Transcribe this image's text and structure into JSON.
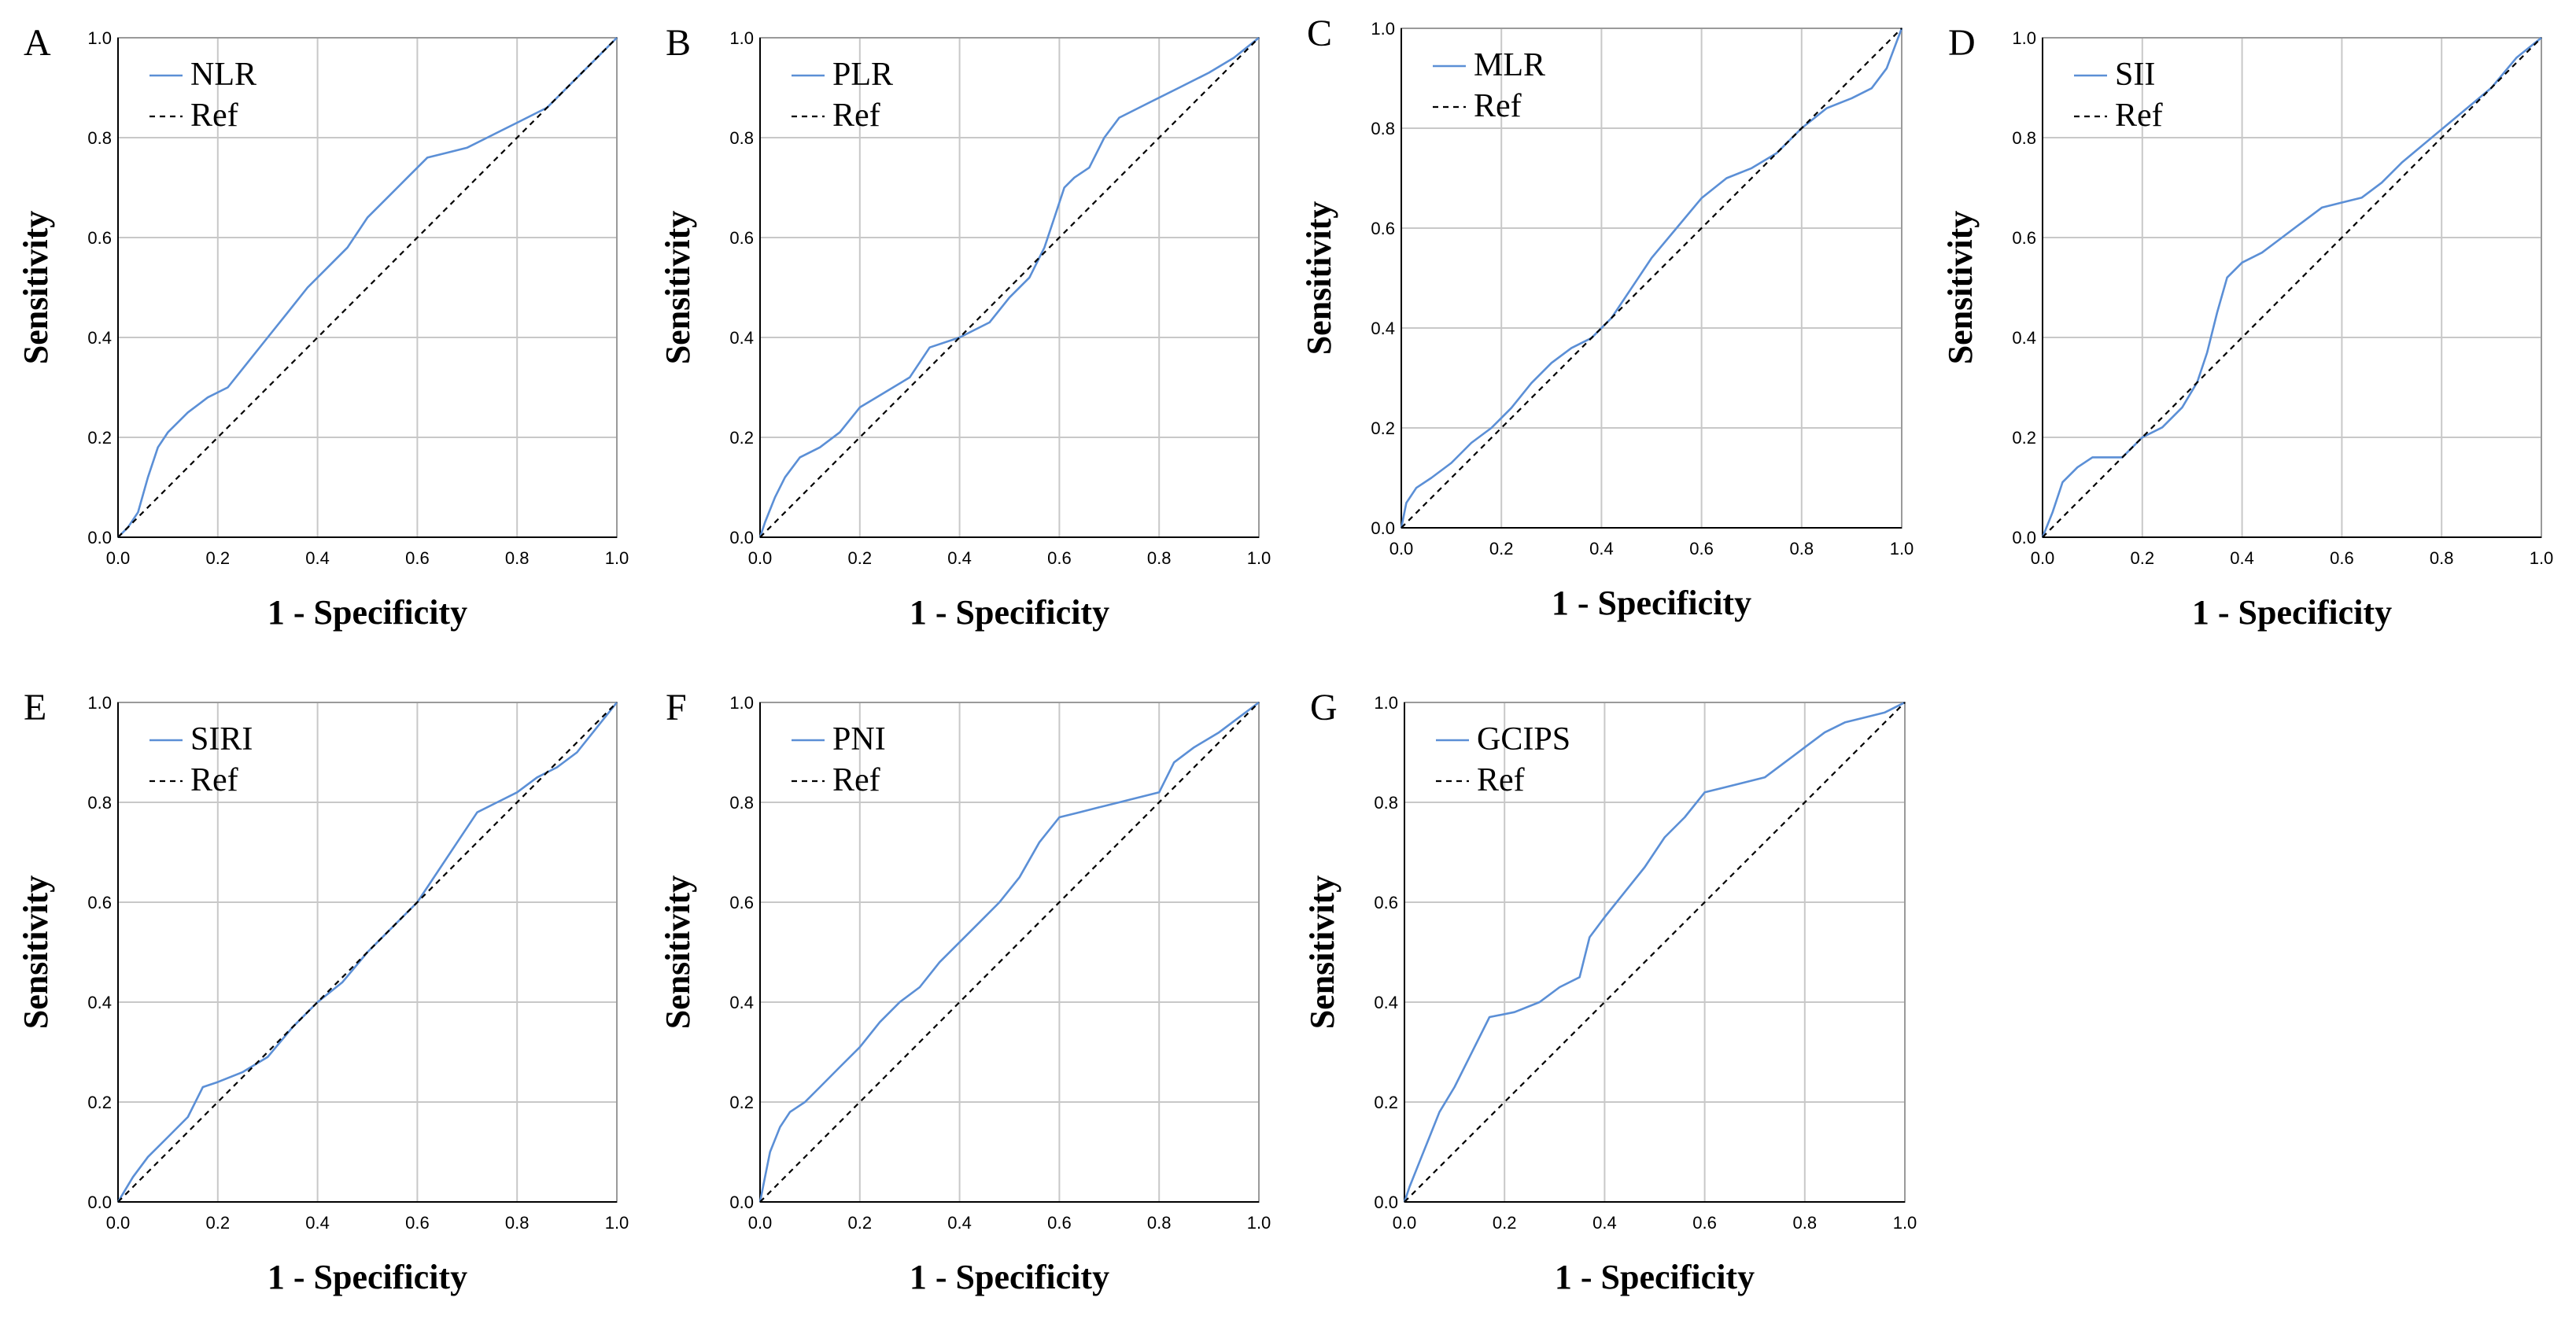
{
  "chart_data": [
    {
      "type": "line",
      "panel": "A",
      "xlabel": "1 - Specificity",
      "ylabel": "Sensitivity",
      "xlim": [
        0,
        1
      ],
      "ylim": [
        0,
        1
      ],
      "ticks": [
        "0.0",
        "0.2",
        "0.4",
        "0.6",
        "0.8",
        "1.0"
      ],
      "grid": true,
      "legend_position": "top-left",
      "series": [
        {
          "name": "NLR",
          "color": "#5b8fd6",
          "x": [
            0,
            0.02,
            0.04,
            0.06,
            0.08,
            0.1,
            0.14,
            0.18,
            0.22,
            0.26,
            0.3,
            0.34,
            0.38,
            0.42,
            0.46,
            0.5,
            0.54,
            0.58,
            0.62,
            0.66,
            0.7,
            0.74,
            0.8,
            0.86,
            0.92,
            0.97,
            1.0
          ],
          "y": [
            0,
            0.02,
            0.05,
            0.12,
            0.18,
            0.21,
            0.25,
            0.28,
            0.3,
            0.35,
            0.4,
            0.45,
            0.5,
            0.54,
            0.58,
            0.64,
            0.68,
            0.72,
            0.76,
            0.77,
            0.78,
            0.8,
            0.83,
            0.86,
            0.92,
            0.97,
            1.0
          ]
        },
        {
          "name": "Ref",
          "color": "#000000",
          "dashed": true,
          "x": [
            0,
            1
          ],
          "y": [
            0,
            1
          ]
        }
      ]
    },
    {
      "type": "line",
      "panel": "B",
      "xlabel": "1 - Specificity",
      "ylabel": "Sensitivity",
      "xlim": [
        0,
        1
      ],
      "ylim": [
        0,
        1
      ],
      "ticks": [
        "0.0",
        "0.2",
        "0.4",
        "0.6",
        "0.8",
        "1.0"
      ],
      "grid": true,
      "legend_position": "top-left",
      "series": [
        {
          "name": "PLR",
          "color": "#5b8fd6",
          "x": [
            0,
            0.01,
            0.03,
            0.05,
            0.08,
            0.12,
            0.16,
            0.2,
            0.25,
            0.3,
            0.34,
            0.4,
            0.46,
            0.5,
            0.54,
            0.57,
            0.59,
            0.61,
            0.63,
            0.66,
            0.69,
            0.72,
            0.78,
            0.84,
            0.9,
            0.95,
            1.0
          ],
          "y": [
            0,
            0.03,
            0.08,
            0.12,
            0.16,
            0.18,
            0.21,
            0.26,
            0.29,
            0.32,
            0.38,
            0.4,
            0.43,
            0.48,
            0.52,
            0.58,
            0.64,
            0.7,
            0.72,
            0.74,
            0.8,
            0.84,
            0.87,
            0.9,
            0.93,
            0.96,
            1.0
          ]
        },
        {
          "name": "Ref",
          "color": "#000000",
          "dashed": true,
          "x": [
            0,
            1
          ],
          "y": [
            0,
            1
          ]
        }
      ]
    },
    {
      "type": "line",
      "panel": "C",
      "xlabel": "1 - Specificity",
      "ylabel": "Sensitivity",
      "xlim": [
        0,
        1
      ],
      "ylim": [
        0,
        1
      ],
      "ticks": [
        "0.0",
        "0.2",
        "0.4",
        "0.6",
        "0.8",
        "1.0"
      ],
      "grid": true,
      "legend_position": "top-left",
      "series": [
        {
          "name": "MLR",
          "color": "#5b8fd6",
          "x": [
            0,
            0.01,
            0.03,
            0.06,
            0.1,
            0.14,
            0.18,
            0.22,
            0.26,
            0.3,
            0.34,
            0.38,
            0.42,
            0.46,
            0.5,
            0.55,
            0.6,
            0.65,
            0.7,
            0.75,
            0.8,
            0.85,
            0.9,
            0.94,
            0.97,
            1.0
          ],
          "y": [
            0,
            0.05,
            0.08,
            0.1,
            0.13,
            0.17,
            0.2,
            0.24,
            0.29,
            0.33,
            0.36,
            0.38,
            0.42,
            0.48,
            0.54,
            0.6,
            0.66,
            0.7,
            0.72,
            0.75,
            0.8,
            0.84,
            0.86,
            0.88,
            0.92,
            1.0
          ]
        },
        {
          "name": "Ref",
          "color": "#000000",
          "dashed": true,
          "x": [
            0,
            1
          ],
          "y": [
            0,
            1
          ]
        }
      ]
    },
    {
      "type": "line",
      "panel": "D",
      "xlabel": "1 - Specificity",
      "ylabel": "Sensitivity",
      "xlim": [
        0,
        1
      ],
      "ylim": [
        0,
        1
      ],
      "ticks": [
        "0.0",
        "0.2",
        "0.4",
        "0.6",
        "0.8",
        "1.0"
      ],
      "grid": true,
      "legend_position": "top-left",
      "series": [
        {
          "name": "SII",
          "color": "#5b8fd6",
          "x": [
            0,
            0.02,
            0.04,
            0.07,
            0.1,
            0.16,
            0.2,
            0.24,
            0.28,
            0.31,
            0.33,
            0.35,
            0.37,
            0.4,
            0.44,
            0.48,
            0.52,
            0.56,
            0.6,
            0.64,
            0.68,
            0.72,
            0.78,
            0.84,
            0.9,
            0.95,
            1.0
          ],
          "y": [
            0,
            0.05,
            0.11,
            0.14,
            0.16,
            0.16,
            0.2,
            0.22,
            0.26,
            0.31,
            0.37,
            0.45,
            0.52,
            0.55,
            0.57,
            0.6,
            0.63,
            0.66,
            0.67,
            0.68,
            0.71,
            0.75,
            0.8,
            0.85,
            0.9,
            0.96,
            1.0
          ]
        },
        {
          "name": "Ref",
          "color": "#000000",
          "dashed": true,
          "x": [
            0,
            1
          ],
          "y": [
            0,
            1
          ]
        }
      ]
    },
    {
      "type": "line",
      "panel": "E",
      "xlabel": "1 - Specificity",
      "ylabel": "Sensitivity",
      "xlim": [
        0,
        1
      ],
      "ylim": [
        0,
        1
      ],
      "ticks": [
        "0.0",
        "0.2",
        "0.4",
        "0.6",
        "0.8",
        "1.0"
      ],
      "grid": true,
      "legend_position": "top-left",
      "series": [
        {
          "name": "SIRI",
          "color": "#5b8fd6",
          "x": [
            0,
            0.03,
            0.06,
            0.1,
            0.14,
            0.17,
            0.2,
            0.25,
            0.3,
            0.35,
            0.4,
            0.45,
            0.5,
            0.55,
            0.6,
            0.64,
            0.68,
            0.72,
            0.76,
            0.8,
            0.84,
            0.88,
            0.92,
            0.96,
            1.0
          ],
          "y": [
            0,
            0.05,
            0.09,
            0.13,
            0.17,
            0.23,
            0.24,
            0.26,
            0.29,
            0.35,
            0.4,
            0.44,
            0.5,
            0.55,
            0.6,
            0.66,
            0.72,
            0.78,
            0.8,
            0.82,
            0.85,
            0.87,
            0.9,
            0.95,
            1.0
          ]
        },
        {
          "name": "Ref",
          "color": "#000000",
          "dashed": true,
          "x": [
            0,
            1
          ],
          "y": [
            0,
            1
          ]
        }
      ]
    },
    {
      "type": "line",
      "panel": "F",
      "xlabel": "1 - Specificity",
      "ylabel": "Sensitivity",
      "xlim": [
        0,
        1
      ],
      "ylim": [
        0,
        1
      ],
      "ticks": [
        "0.0",
        "0.2",
        "0.4",
        "0.6",
        "0.8",
        "1.0"
      ],
      "grid": true,
      "legend_position": "top-left",
      "series": [
        {
          "name": "PNI",
          "color": "#5b8fd6",
          "x": [
            0,
            0.01,
            0.02,
            0.04,
            0.06,
            0.09,
            0.12,
            0.16,
            0.2,
            0.24,
            0.28,
            0.32,
            0.36,
            0.4,
            0.44,
            0.48,
            0.52,
            0.56,
            0.6,
            0.64,
            0.68,
            0.72,
            0.76,
            0.8,
            0.83,
            0.87,
            0.92,
            0.96,
            1.0
          ],
          "y": [
            0,
            0.05,
            0.1,
            0.15,
            0.18,
            0.2,
            0.23,
            0.27,
            0.31,
            0.36,
            0.4,
            0.43,
            0.48,
            0.52,
            0.56,
            0.6,
            0.65,
            0.72,
            0.77,
            0.78,
            0.79,
            0.8,
            0.81,
            0.82,
            0.88,
            0.91,
            0.94,
            0.97,
            1.0
          ]
        },
        {
          "name": "Ref",
          "color": "#000000",
          "dashed": true,
          "x": [
            0,
            1
          ],
          "y": [
            0,
            1
          ]
        }
      ]
    },
    {
      "type": "line",
      "panel": "G",
      "xlabel": "1 - Specificity",
      "ylabel": "Sensitivity",
      "xlim": [
        0,
        1
      ],
      "ylim": [
        0,
        1
      ],
      "ticks": [
        "0.0",
        "0.2",
        "0.4",
        "0.6",
        "0.8",
        "1.0"
      ],
      "grid": true,
      "legend_position": "top-left",
      "series": [
        {
          "name": "GCIPS",
          "color": "#5b8fd6",
          "x": [
            0,
            0.01,
            0.03,
            0.05,
            0.07,
            0.1,
            0.13,
            0.17,
            0.22,
            0.27,
            0.31,
            0.35,
            0.37,
            0.4,
            0.44,
            0.48,
            0.52,
            0.56,
            0.6,
            0.64,
            0.68,
            0.72,
            0.76,
            0.8,
            0.84,
            0.88,
            0.92,
            0.96,
            1.0
          ],
          "y": [
            0,
            0.03,
            0.08,
            0.13,
            0.18,
            0.23,
            0.29,
            0.37,
            0.38,
            0.4,
            0.43,
            0.45,
            0.53,
            0.57,
            0.62,
            0.67,
            0.73,
            0.77,
            0.82,
            0.83,
            0.84,
            0.85,
            0.88,
            0.91,
            0.94,
            0.96,
            0.97,
            0.98,
            1.0
          ]
        },
        {
          "name": "Ref",
          "color": "#000000",
          "dashed": true,
          "x": [
            0,
            1
          ],
          "y": [
            0,
            1
          ]
        }
      ]
    }
  ]
}
